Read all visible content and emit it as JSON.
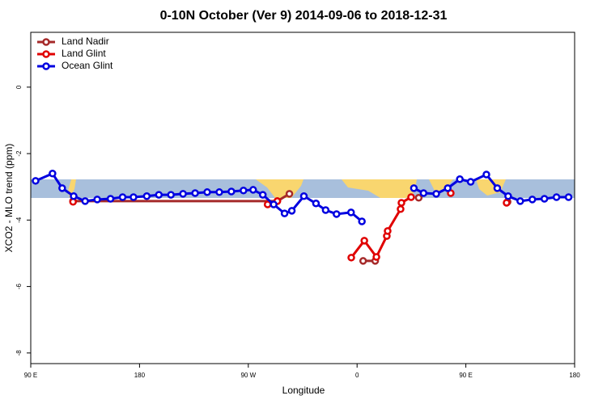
{
  "chart_data": {
    "type": "line",
    "title": "0-10N October (Ver 9)   2014-09-06 to 2018-12-31",
    "x_label": "Longitude",
    "y_label": "XCO2 - MLO trend (ppm)",
    "xlim": [
      90,
      540
    ],
    "ylim": [
      -8.32,
      1.65
    ],
    "xticks": [
      {
        "value": 90,
        "label": "90 E"
      },
      {
        "value": 180,
        "label": "180"
      },
      {
        "value": 270,
        "label": "90 W"
      },
      {
        "value": 360,
        "label": "0"
      },
      {
        "value": 450,
        "label": "90 E"
      },
      {
        "value": 540,
        "label": "180"
      }
    ],
    "yticks": [
      0,
      -2,
      -4,
      -6,
      -8
    ],
    "legend": "top-left",
    "series": [
      {
        "name": "Land Nadir",
        "color": "#a52a2a",
        "x": [
          125,
          294,
          304,
          330,
          365,
          375,
          395,
          411,
          450,
          484.5
        ],
        "values": [
          -3.43,
          -3.43,
          -3.21,
          null,
          -5.23,
          -5.23,
          null,
          -3.33,
          null,
          -3.45
        ]
      },
      {
        "name": "Land Glint",
        "color": "#e00000",
        "x": [
          125,
          200,
          286,
          294,
          330,
          355.2,
          366,
          376,
          384.6,
          385.3,
          396,
          396.7,
          404.7,
          420,
          437.5,
          460,
          483.7
        ],
        "values": [
          -3.45,
          null,
          -3.53,
          -3.43,
          null,
          -5.13,
          -4.62,
          -5.11,
          -4.48,
          -4.33,
          -3.67,
          -3.48,
          -3.31,
          null,
          -3.19,
          null,
          -3.48
        ]
      },
      {
        "name": "Ocean Glint",
        "color": "#0000e0",
        "x": [
          94,
          108,
          116,
          125.5,
          135,
          145,
          156,
          166,
          175,
          186,
          196,
          206,
          216,
          226,
          236,
          246,
          256,
          266,
          274,
          282,
          291,
          300,
          306,
          316,
          326,
          334,
          343,
          355,
          364,
          385,
          407,
          415,
          425.5,
          435,
          445,
          454,
          467,
          476,
          485,
          495,
          505,
          515,
          525,
          535
        ],
        "values": [
          -2.82,
          -2.6,
          -3.04,
          -3.28,
          -3.43,
          -3.38,
          -3.36,
          -3.31,
          -3.31,
          -3.28,
          -3.24,
          -3.24,
          -3.21,
          -3.19,
          -3.16,
          -3.16,
          -3.14,
          -3.11,
          -3.09,
          -3.24,
          -3.53,
          -3.8,
          -3.72,
          -3.28,
          -3.5,
          -3.7,
          -3.82,
          -3.77,
          -4.04,
          null,
          -3.04,
          -3.19,
          -3.21,
          -3.04,
          -2.77,
          -2.85,
          -2.63,
          -3.04,
          -3.28,
          -3.43,
          -3.38,
          -3.36,
          -3.31,
          -3.31
        ]
      }
    ]
  }
}
